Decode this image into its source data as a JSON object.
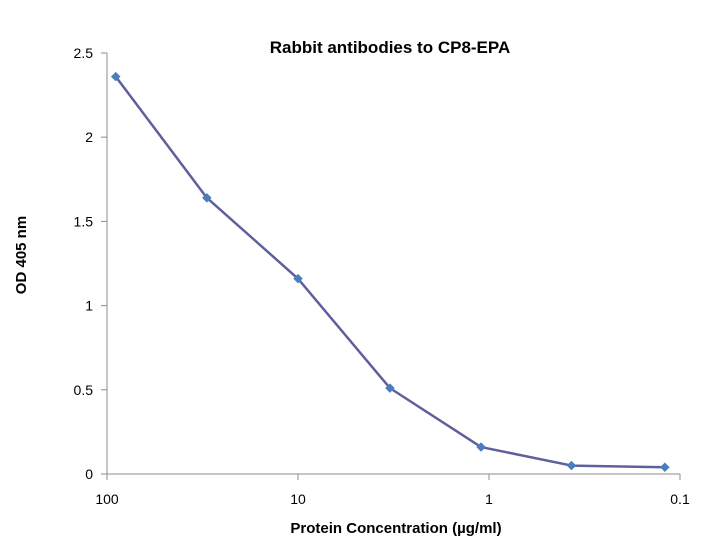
{
  "chart_data": {
    "type": "line",
    "title": "Rabbit antibodies to CP8-EPA",
    "xlabel": "Protein Concentration (µg/ml)",
    "ylabel": "OD 405 nm",
    "x_scale": "log",
    "x_reversed": true,
    "xlim": [
      100,
      0.1
    ],
    "ylim": [
      0,
      2.5
    ],
    "x_ticks": [
      100,
      10,
      1,
      0.1
    ],
    "x_tick_labels": [
      "100",
      "10",
      "1",
      "0.1"
    ],
    "y_ticks": [
      0,
      0.5,
      1,
      1.5,
      2,
      2.5
    ],
    "y_tick_labels": [
      "0",
      "0.5",
      "1",
      "1.5",
      "2",
      "2.5"
    ],
    "grid": false,
    "series": [
      {
        "color": "#5f5f9e",
        "marker_color": "#4a7ebb",
        "marker": "diamond",
        "x": [
          90,
          30,
          10,
          3.3,
          1.1,
          0.37,
          0.12
        ],
        "y": [
          2.36,
          1.64,
          1.16,
          0.51,
          0.16,
          0.05,
          0.04
        ]
      }
    ]
  }
}
